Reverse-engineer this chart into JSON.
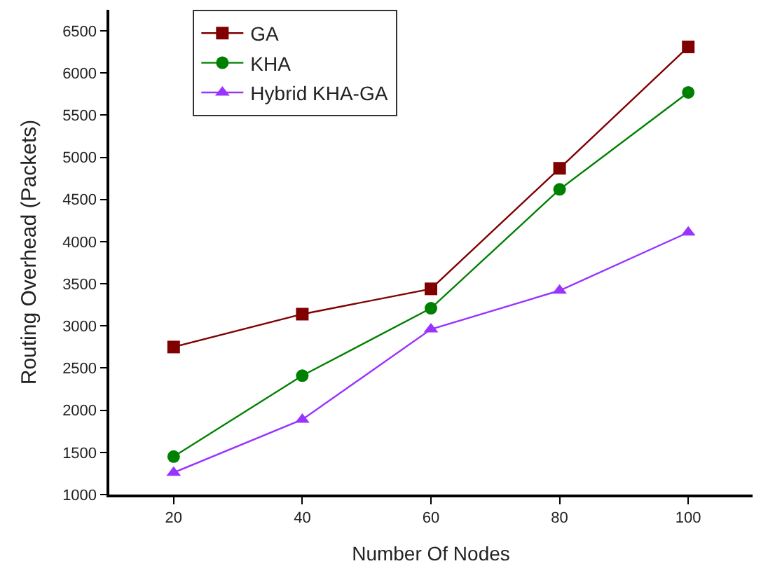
{
  "chart_data": {
    "type": "line",
    "xlabel": "Number Of Nodes",
    "ylabel": "Routing Overhead (Packets)",
    "x": [
      20,
      40,
      60,
      80,
      100
    ],
    "series": [
      {
        "name": "GA",
        "color": "#800000",
        "marker": "square",
        "values": [
          2750,
          3140,
          3440,
          4870,
          6310
        ]
      },
      {
        "name": "KHA",
        "color": "#008000",
        "marker": "circle",
        "values": [
          1450,
          2410,
          3210,
          4620,
          5770
        ]
      },
      {
        "name": "Hybrid KHA-GA",
        "color": "#9933ff",
        "marker": "triangle",
        "values": [
          1260,
          1890,
          2960,
          3420,
          4110
        ]
      }
    ],
    "xlim": [
      10,
      110
    ],
    "xticks": [
      20,
      40,
      60,
      80,
      100
    ],
    "ylim": [
      1000,
      6750
    ],
    "yticks": [
      1000,
      1500,
      2000,
      2500,
      3000,
      3500,
      4000,
      4500,
      5000,
      5500,
      6000,
      6500
    ],
    "legend": "top left",
    "line_style": "solid"
  }
}
